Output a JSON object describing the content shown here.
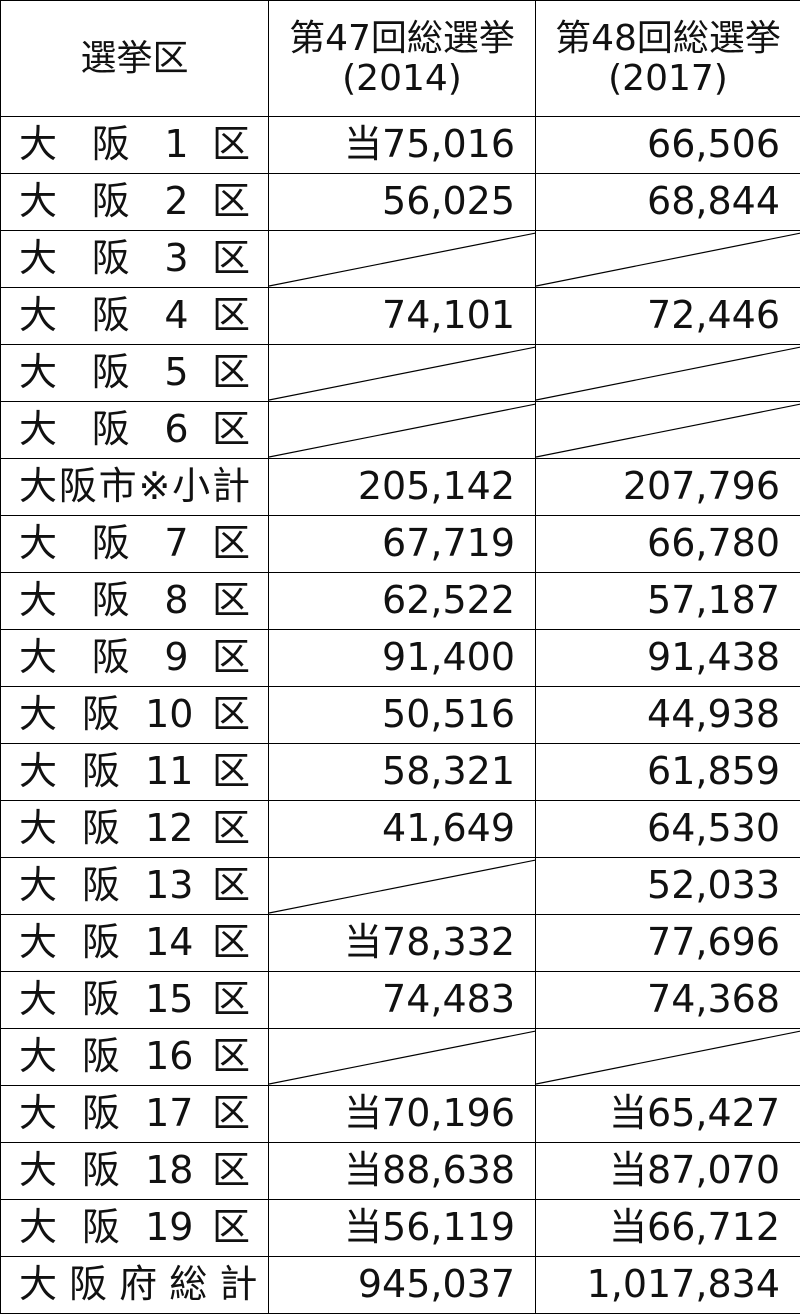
{
  "table": {
    "header": {
      "district": "選挙区",
      "columns": [
        {
          "title": "第47回総選挙",
          "year": "(2014)"
        },
        {
          "title": "第48回総選挙",
          "year": "(2017)"
        }
      ]
    },
    "rows": [
      [
        "大 阪 1 区",
        "当75,016",
        "66,506"
      ],
      [
        "大 阪 2 区",
        "56,025",
        "68,844"
      ],
      [
        "大 阪 3 区",
        null,
        null
      ],
      [
        "大 阪 4 区",
        "74,101",
        "72,446"
      ],
      [
        "大 阪 5 区",
        null,
        null
      ],
      [
        "大 阪 6 区",
        null,
        null
      ],
      [
        "大阪市※小計",
        "205,142",
        "207,796"
      ],
      [
        "大 阪 7 区",
        "67,719",
        "66,780"
      ],
      [
        "大 阪 8 区",
        "62,522",
        "57,187"
      ],
      [
        "大 阪 9 区",
        "91,400",
        "91,438"
      ],
      [
        "大 阪 10 区",
        "50,516",
        "44,938"
      ],
      [
        "大 阪 11 区",
        "58,321",
        "61,859"
      ],
      [
        "大 阪 12 区",
        "41,649",
        "64,530"
      ],
      [
        "大 阪 13 区",
        null,
        "52,033"
      ],
      [
        "大 阪 14 区",
        "当78,332",
        "77,696"
      ],
      [
        "大 阪 15 区",
        "74,483",
        "74,368"
      ],
      [
        "大 阪 16 区",
        null,
        null
      ],
      [
        "大 阪 17 区",
        "当70,196",
        "当65,427"
      ],
      [
        "大 阪 18 区",
        "当88,638",
        "当87,070"
      ],
      [
        "大 阪 19 区",
        "当56,119",
        "当66,712"
      ],
      [
        "大 阪 府 総 計",
        "945,037",
        "1,017,834"
      ]
    ]
  }
}
